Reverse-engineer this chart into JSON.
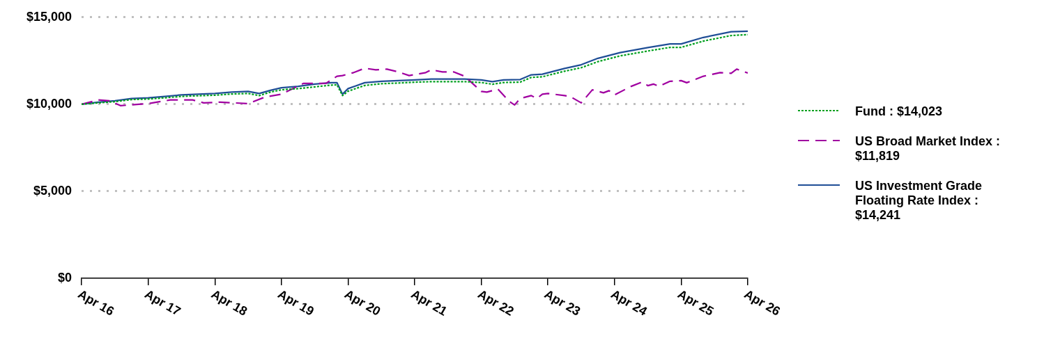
{
  "chart_data": {
    "type": "line",
    "xlim": [
      "2016-04",
      "2026-04"
    ],
    "xticks": [
      {
        "value": "2016-04",
        "label": "Apr 16"
      },
      {
        "value": "2017-04",
        "label": "Apr 17"
      },
      {
        "value": "2018-04",
        "label": "Apr 18"
      },
      {
        "value": "2019-04",
        "label": "Apr 19"
      },
      {
        "value": "2020-04",
        "label": "Apr 20"
      },
      {
        "value": "2021-04",
        "label": "Apr 21"
      },
      {
        "value": "2022-04",
        "label": "Apr 22"
      },
      {
        "value": "2023-04",
        "label": "Apr 23"
      },
      {
        "value": "2024-04",
        "label": "Apr 24"
      },
      {
        "value": "2025-04",
        "label": "Apr 25"
      },
      {
        "value": "2026-04",
        "label": "Apr 26"
      }
    ],
    "ylim": [
      0,
      15000
    ],
    "yticks": [
      {
        "value": 0,
        "label": "$0"
      },
      {
        "value": 5000,
        "label": "$5,000"
      },
      {
        "value": 10000,
        "label": "$10,000"
      },
      {
        "value": 15000,
        "label": "$15,000"
      }
    ],
    "grid": "y",
    "legend": "right",
    "marker": "none",
    "series": [
      {
        "name": "Fund : $14,023",
        "color": "#00a01e",
        "line_style": "dotted",
        "x": [
          "2016-04",
          "2016-07",
          "2016-10",
          "2017-01",
          "2017-04",
          "2017-07",
          "2017-10",
          "2018-01",
          "2018-04",
          "2018-07",
          "2018-10",
          "2018-12",
          "2019-02",
          "2019-04",
          "2019-07",
          "2019-10",
          "2020-01",
          "2020-02",
          "2020-03",
          "2020-04",
          "2020-07",
          "2020-10",
          "2021-01",
          "2021-04",
          "2021-07",
          "2021-10",
          "2022-01",
          "2022-04",
          "2022-06",
          "2022-08",
          "2022-11",
          "2023-01",
          "2023-03",
          "2023-07",
          "2023-10",
          "2024-01",
          "2024-05",
          "2024-10",
          "2025-02",
          "2025-04",
          "2025-08",
          "2026-01",
          "2026-04"
        ],
        "values": [
          10000,
          10080,
          10150,
          10270,
          10300,
          10370,
          10450,
          10490,
          10520,
          10590,
          10620,
          10500,
          10700,
          10830,
          10900,
          11000,
          11100,
          11120,
          10500,
          10750,
          11080,
          11180,
          11220,
          11270,
          11300,
          11300,
          11300,
          11250,
          11150,
          11250,
          11270,
          11540,
          11580,
          11900,
          12100,
          12450,
          12780,
          13060,
          13270,
          13270,
          13630,
          13950,
          14000
        ]
      },
      {
        "name": "US Broad Market Index : $11,819",
        "color": "#a000a0",
        "line_style": "dashed",
        "x": [
          "2016-04",
          "2016-07",
          "2016-09",
          "2016-11",
          "2017-04",
          "2017-08",
          "2017-12",
          "2018-02",
          "2018-05",
          "2018-10",
          "2019-01",
          "2019-04",
          "2019-08",
          "2019-12",
          "2020-02",
          "2020-03",
          "2020-05",
          "2020-07",
          "2020-09",
          "2020-11",
          "2021-01",
          "2021-03",
          "2021-06",
          "2021-07",
          "2021-09",
          "2021-11",
          "2022-01",
          "2022-03",
          "2022-04",
          "2022-05",
          "2022-07",
          "2022-09",
          "2022-10",
          "2022-11",
          "2023-01",
          "2023-02",
          "2023-03",
          "2023-04",
          "2023-07",
          "2023-08",
          "2023-10",
          "2023-12",
          "2024-02",
          "2024-03",
          "2024-04",
          "2024-07",
          "2024-09",
          "2024-10",
          "2024-11",
          "2024-12",
          "2025-02",
          "2025-04",
          "2025-05",
          "2025-08",
          "2025-11",
          "2026-01",
          "2026-02",
          "2026-04"
        ],
        "values": [
          10000,
          10250,
          10200,
          9920,
          10040,
          10250,
          10250,
          10080,
          10120,
          10040,
          10410,
          10580,
          11200,
          11200,
          11610,
          11650,
          11820,
          12070,
          11980,
          12020,
          11860,
          11650,
          11820,
          11980,
          11860,
          11860,
          11610,
          11030,
          10740,
          10700,
          10870,
          10170,
          9960,
          10330,
          10500,
          10330,
          10580,
          10620,
          10500,
          10450,
          10080,
          10830,
          10660,
          10780,
          10540,
          11030,
          11280,
          11070,
          11160,
          11030,
          11320,
          11360,
          11240,
          11610,
          11820,
          11780,
          12020,
          11800
        ]
      },
      {
        "name": "US Investment Grade Floating Rate Index : $14,241",
        "color": "#1f4e96",
        "line_style": "solid",
        "x": [
          "2016-04",
          "2016-07",
          "2016-10",
          "2017-01",
          "2017-04",
          "2017-07",
          "2017-10",
          "2018-01",
          "2018-04",
          "2018-07",
          "2018-10",
          "2018-12",
          "2019-02",
          "2019-04",
          "2019-07",
          "2019-10",
          "2020-01",
          "2020-02",
          "2020-03",
          "2020-04",
          "2020-07",
          "2020-10",
          "2021-01",
          "2021-04",
          "2021-07",
          "2021-10",
          "2022-01",
          "2022-04",
          "2022-06",
          "2022-08",
          "2022-11",
          "2023-01",
          "2023-03",
          "2023-07",
          "2023-10",
          "2024-01",
          "2024-05",
          "2024-10",
          "2025-02",
          "2025-04",
          "2025-08",
          "2026-01",
          "2026-04"
        ],
        "values": [
          10000,
          10120,
          10200,
          10330,
          10370,
          10450,
          10540,
          10580,
          10620,
          10700,
          10740,
          10620,
          10800,
          10950,
          11030,
          11160,
          11240,
          11240,
          10580,
          10900,
          11240,
          11320,
          11360,
          11400,
          11450,
          11450,
          11450,
          11400,
          11300,
          11400,
          11420,
          11690,
          11730,
          12060,
          12270,
          12640,
          12970,
          13260,
          13470,
          13470,
          13840,
          14170,
          14200
        ]
      }
    ]
  }
}
